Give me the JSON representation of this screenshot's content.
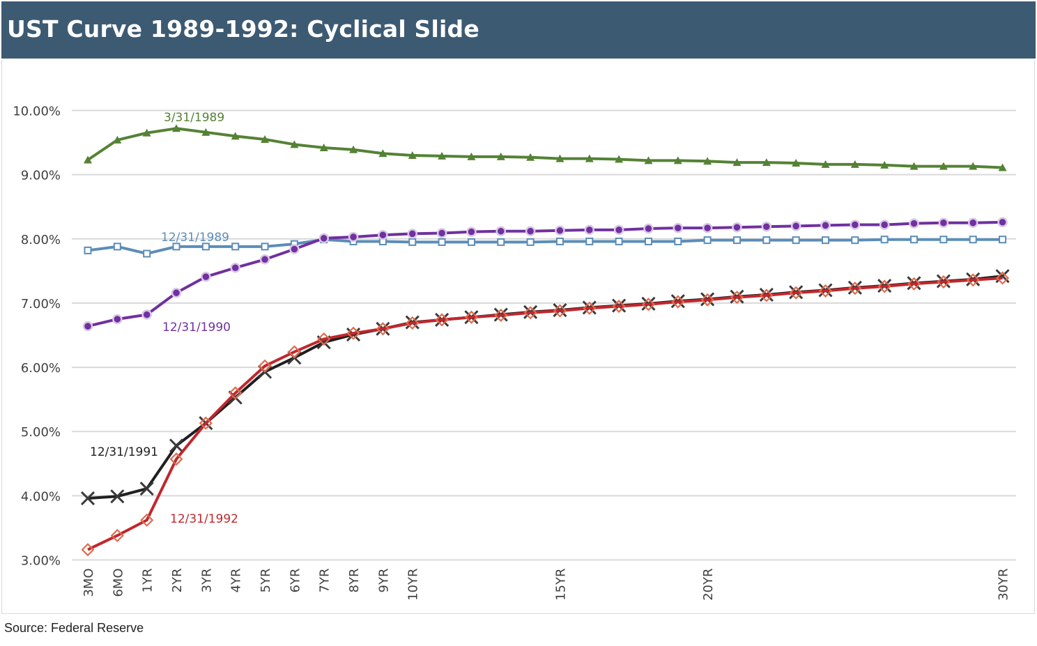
{
  "header": {
    "title": "UST Curve 1989-1992: Cyclical Slide"
  },
  "footer": {
    "source": "Source: Federal Reserve"
  },
  "colors": {
    "header_bg": "#3d5a73",
    "s1989q1": "#548235",
    "s1989": "#5b8db8",
    "s1990": "#7030a0",
    "s1991": "#1f1f1f",
    "s1992": "#c0272d",
    "grid": "#d9d9d9"
  },
  "chart_data": {
    "type": "line",
    "title": "UST Curve 1989-1992: Cyclical Slide",
    "xlabel": "",
    "ylabel": "",
    "ylim": [
      3.0,
      10.0
    ],
    "y_ticks": [
      "3.00%",
      "4.00%",
      "5.00%",
      "6.00%",
      "7.00%",
      "8.00%",
      "9.00%",
      "10.00%"
    ],
    "y_tick_values": [
      3,
      4,
      5,
      6,
      7,
      8,
      9,
      10
    ],
    "x_tick_labels": [
      "3MO",
      "6MO",
      "1YR",
      "2YR",
      "3YR",
      "4YR",
      "5YR",
      "6YR",
      "7YR",
      "8YR",
      "9YR",
      "10YR",
      "15YR",
      "20YR",
      "30YR"
    ],
    "x_tick_positions": [
      0,
      1,
      2,
      3,
      4,
      5,
      6,
      7,
      8,
      9,
      10,
      11,
      16,
      21,
      31
    ],
    "grid": true,
    "legend": "inline labels",
    "series": [
      {
        "name": "3/31/1989",
        "color_key": "s1989q1",
        "marker": "triangle",
        "values": [
          9.23,
          9.54,
          9.65,
          9.72,
          9.66,
          9.6,
          9.55,
          9.47,
          9.42,
          9.39,
          9.33,
          9.3,
          9.29,
          9.28,
          9.28,
          9.27,
          9.25,
          9.25,
          9.24,
          9.22,
          9.22,
          9.21,
          9.19,
          9.19,
          9.18,
          9.16,
          9.16,
          9.15,
          9.13,
          9.13,
          9.13,
          9.11
        ]
      },
      {
        "name": "12/31/1989",
        "color_key": "s1989",
        "marker": "square",
        "values": [
          7.82,
          7.88,
          7.77,
          7.88,
          7.88,
          7.88,
          7.88,
          7.92,
          7.99,
          7.96,
          7.96,
          7.95,
          7.95,
          7.95,
          7.95,
          7.95,
          7.96,
          7.96,
          7.96,
          7.96,
          7.96,
          7.98,
          7.98,
          7.98,
          7.98,
          7.98,
          7.98,
          7.99,
          7.99,
          7.99,
          7.99,
          7.99
        ]
      },
      {
        "name": "12/31/1990",
        "color_key": "s1990",
        "marker": "circle",
        "values": [
          6.64,
          6.75,
          6.82,
          7.16,
          7.41,
          7.55,
          7.68,
          7.84,
          8.01,
          8.03,
          8.06,
          8.08,
          8.09,
          8.11,
          8.12,
          8.12,
          8.13,
          8.14,
          8.14,
          8.16,
          8.17,
          8.17,
          8.18,
          8.19,
          8.2,
          8.21,
          8.22,
          8.22,
          8.24,
          8.25,
          8.25,
          8.26
        ]
      },
      {
        "name": "12/31/1991",
        "color_key": "s1991",
        "marker": "x",
        "values": [
          3.96,
          3.99,
          4.11,
          4.78,
          5.13,
          5.53,
          5.93,
          6.15,
          6.39,
          6.51,
          6.6,
          6.7,
          6.74,
          6.78,
          6.82,
          6.86,
          6.89,
          6.93,
          6.96,
          6.99,
          7.03,
          7.06,
          7.1,
          7.13,
          7.17,
          7.2,
          7.24,
          7.27,
          7.31,
          7.34,
          7.37,
          7.42
        ]
      },
      {
        "name": "12/31/1992",
        "color_key": "s1992",
        "marker": "diamond",
        "values": [
          3.16,
          3.38,
          3.62,
          4.57,
          5.13,
          5.6,
          6.02,
          6.24,
          6.44,
          6.53,
          6.6,
          6.69,
          6.74,
          6.78,
          6.81,
          6.85,
          6.88,
          6.92,
          6.95,
          6.98,
          7.02,
          7.05,
          7.09,
          7.12,
          7.16,
          7.19,
          7.23,
          7.26,
          7.3,
          7.33,
          7.36,
          7.39
        ]
      }
    ]
  }
}
